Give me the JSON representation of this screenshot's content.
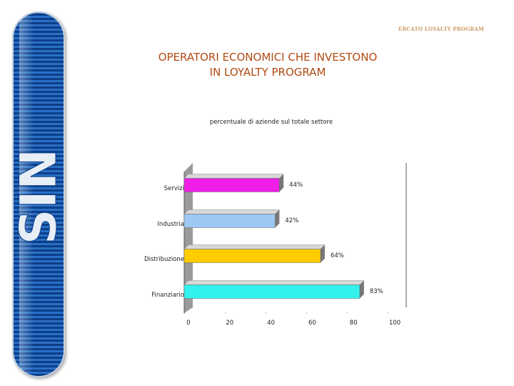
{
  "header": {
    "tag": "ERCATO LOYALTY PROGRAM",
    "title_line1": "OPERATORI ECONOMICI CHE INVESTONO",
    "title_line2": "IN LOYALTY PROGRAM"
  },
  "logo": {
    "text": "SIN",
    "band_color": "#1f5fae"
  },
  "chart_data": {
    "type": "bar",
    "orientation": "horizontal",
    "title": "percentuale di aziende sul totale settore",
    "categories": [
      "Servizi",
      "Industria",
      "Distribuzione",
      "Finanziario"
    ],
    "values": [
      44,
      42,
      64,
      83
    ],
    "value_labels": [
      "44%",
      "42%",
      "64%",
      "83%"
    ],
    "colors": [
      "#f01ee6",
      "#9cc8f2",
      "#ffcc00",
      "#33f2ee"
    ],
    "xlim": [
      0,
      100
    ],
    "xticks": [
      0,
      20,
      40,
      60,
      80,
      100
    ],
    "xlabel": "",
    "ylabel": "",
    "grid": false,
    "legend": "none"
  }
}
